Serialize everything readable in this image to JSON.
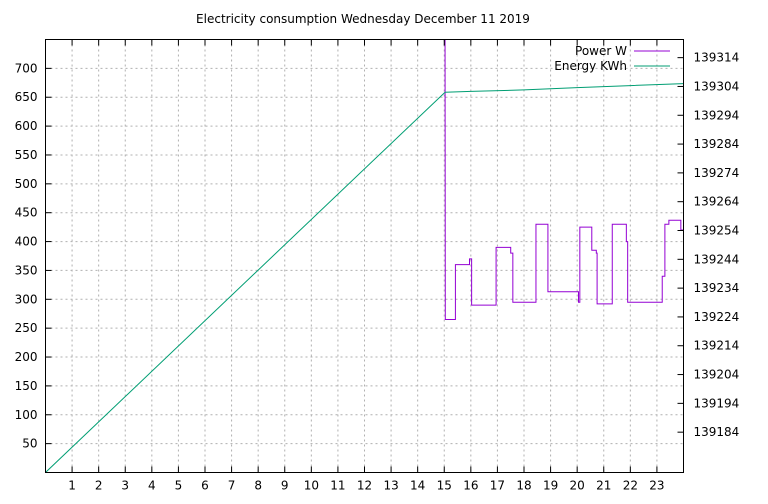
{
  "chart_data": {
    "type": "line",
    "title": "Electricity consumption Wednesday December 11 2019",
    "xlabel": "",
    "ylabel": "",
    "xlim": [
      0,
      24
    ],
    "ylim": [
      0,
      750
    ],
    "y2lim": [
      139170,
      139320.3
    ],
    "x_ticks": [
      1,
      2,
      3,
      4,
      5,
      6,
      7,
      8,
      9,
      10,
      11,
      12,
      13,
      14,
      15,
      16,
      17,
      18,
      19,
      20,
      21,
      22,
      23
    ],
    "y_ticks": [
      50,
      100,
      150,
      200,
      250,
      300,
      350,
      400,
      450,
      500,
      550,
      600,
      650,
      700
    ],
    "y2_ticks": [
      139184,
      139194,
      139204,
      139214,
      139224,
      139234,
      139244,
      139254,
      139264,
      139274,
      139284,
      139294,
      139304,
      139314
    ],
    "grid": true,
    "legend_position": "top-right",
    "series": [
      {
        "name": "Power W",
        "axis": "y",
        "color": "#9400d3",
        "points": [
          [
            15.02,
            750
          ],
          [
            15.03,
            750
          ],
          [
            15.04,
            265
          ],
          [
            15.42,
            265
          ],
          [
            15.42,
            360
          ],
          [
            15.95,
            360
          ],
          [
            15.95,
            370
          ],
          [
            16.03,
            370
          ],
          [
            16.03,
            290
          ],
          [
            16.95,
            290
          ],
          [
            16.95,
            390
          ],
          [
            17.5,
            390
          ],
          [
            17.5,
            380
          ],
          [
            17.58,
            380
          ],
          [
            17.58,
            295
          ],
          [
            18.45,
            295
          ],
          [
            18.45,
            430
          ],
          [
            18.9,
            430
          ],
          [
            18.9,
            313
          ],
          [
            20.05,
            313
          ],
          [
            20.05,
            295
          ],
          [
            20.1,
            295
          ],
          [
            20.1,
            425
          ],
          [
            20.55,
            425
          ],
          [
            20.55,
            385
          ],
          [
            20.72,
            385
          ],
          [
            20.72,
            380
          ],
          [
            20.75,
            380
          ],
          [
            20.75,
            292
          ],
          [
            21.32,
            292
          ],
          [
            21.32,
            430
          ],
          [
            21.85,
            430
          ],
          [
            21.85,
            400
          ],
          [
            21.9,
            400
          ],
          [
            21.9,
            295
          ],
          [
            23.2,
            295
          ],
          [
            23.2,
            340
          ],
          [
            23.3,
            340
          ],
          [
            23.3,
            430
          ],
          [
            23.45,
            430
          ],
          [
            23.45,
            437
          ],
          [
            23.9,
            437
          ],
          [
            23.9,
            420
          ],
          [
            24,
            420
          ],
          [
            24,
            340
          ]
        ]
      },
      {
        "name": "Energy KWh",
        "axis": "y2",
        "color": "#009e73",
        "points": [
          [
            0,
            139170
          ],
          [
            15.03,
            139302
          ],
          [
            16,
            139302.3
          ],
          [
            18,
            139302.8
          ],
          [
            20,
            139303.6
          ],
          [
            22,
            139304.3
          ],
          [
            24,
            139305
          ]
        ]
      }
    ]
  }
}
